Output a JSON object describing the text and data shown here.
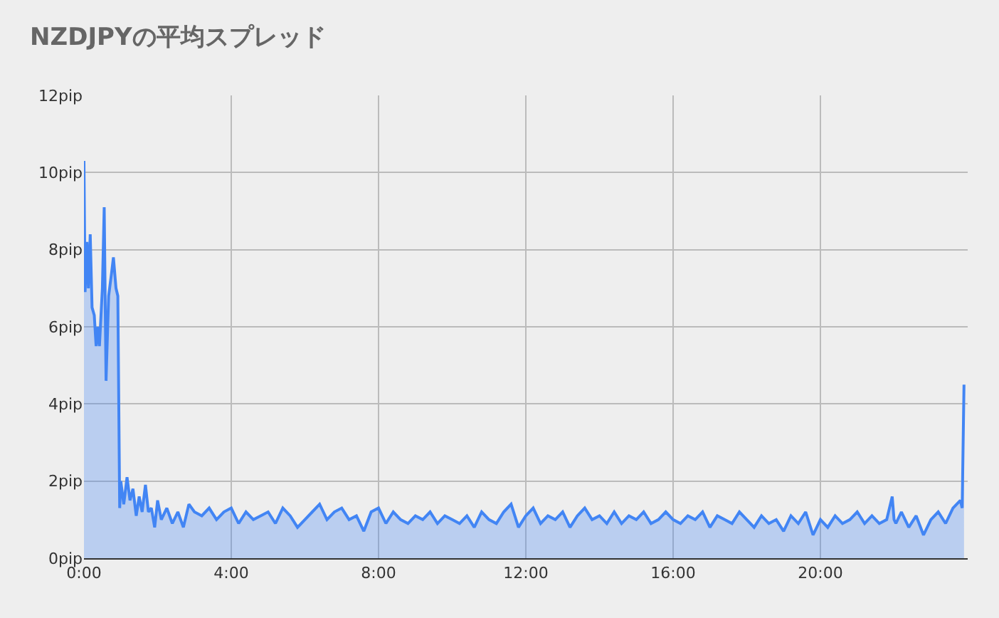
{
  "chart_data": {
    "type": "area",
    "title": "NZDJPYの平均スプレッド",
    "color": "#4285f4",
    "x": [
      0,
      0.03,
      0.08,
      0.12,
      0.17,
      0.22,
      0.28,
      0.33,
      0.38,
      0.42,
      0.5,
      0.55,
      0.6,
      0.67,
      0.75,
      0.8,
      0.87,
      0.92,
      0.97,
      1.0,
      1.08,
      1.17,
      1.25,
      1.33,
      1.42,
      1.5,
      1.58,
      1.67,
      1.75,
      1.83,
      1.92,
      2.0,
      2.1,
      2.25,
      2.4,
      2.55,
      2.7,
      2.85,
      3.0,
      3.2,
      3.4,
      3.6,
      3.8,
      4.0,
      4.2,
      4.4,
      4.6,
      4.8,
      5.0,
      5.2,
      5.4,
      5.6,
      5.8,
      6.0,
      6.2,
      6.4,
      6.6,
      6.8,
      7.0,
      7.2,
      7.4,
      7.6,
      7.8,
      8.0,
      8.2,
      8.4,
      8.6,
      8.8,
      9.0,
      9.2,
      9.4,
      9.6,
      9.8,
      10.0,
      10.2,
      10.4,
      10.6,
      10.8,
      11.0,
      11.2,
      11.4,
      11.6,
      11.8,
      12.0,
      12.2,
      12.4,
      12.6,
      12.8,
      13.0,
      13.2,
      13.4,
      13.6,
      13.8,
      14.0,
      14.2,
      14.4,
      14.6,
      14.8,
      15.0,
      15.2,
      15.4,
      15.6,
      15.8,
      16.0,
      16.2,
      16.4,
      16.6,
      16.8,
      17.0,
      17.2,
      17.4,
      17.6,
      17.8,
      18.0,
      18.2,
      18.4,
      18.6,
      18.8,
      19.0,
      19.2,
      19.4,
      19.6,
      19.8,
      20.0,
      20.2,
      20.4,
      20.6,
      20.8,
      21.0,
      21.2,
      21.4,
      21.6,
      21.8,
      21.95,
      22.0,
      22.05,
      22.2,
      22.4,
      22.6,
      22.8,
      23.0,
      23.2,
      23.4,
      23.6,
      23.8,
      23.85,
      23.9
    ],
    "values": [
      10.3,
      6.9,
      8.2,
      7.0,
      8.4,
      6.5,
      6.3,
      5.5,
      6.0,
      5.5,
      7.0,
      9.1,
      4.6,
      6.8,
      7.4,
      7.8,
      7.0,
      6.8,
      1.3,
      2.0,
      1.4,
      2.1,
      1.5,
      1.8,
      1.1,
      1.6,
      1.2,
      1.9,
      1.2,
      1.3,
      0.8,
      1.5,
      1.0,
      1.3,
      0.9,
      1.2,
      0.8,
      1.4,
      1.2,
      1.1,
      1.3,
      1.0,
      1.2,
      1.3,
      0.9,
      1.2,
      1.0,
      1.1,
      1.2,
      0.9,
      1.3,
      1.1,
      0.8,
      1.0,
      1.2,
      1.4,
      1.0,
      1.2,
      1.3,
      1.0,
      1.1,
      0.7,
      1.2,
      1.3,
      0.9,
      1.2,
      1.0,
      0.9,
      1.1,
      1.0,
      1.2,
      0.9,
      1.1,
      1.0,
      0.9,
      1.1,
      0.8,
      1.2,
      1.0,
      0.9,
      1.2,
      1.4,
      0.8,
      1.1,
      1.3,
      0.9,
      1.1,
      1.0,
      1.2,
      0.8,
      1.1,
      1.3,
      1.0,
      1.1,
      0.9,
      1.2,
      0.9,
      1.1,
      1.0,
      1.2,
      0.9,
      1.0,
      1.2,
      1.0,
      0.9,
      1.1,
      1.0,
      1.2,
      0.8,
      1.1,
      1.0,
      0.9,
      1.2,
      1.0,
      0.8,
      1.1,
      0.9,
      1.0,
      0.7,
      1.1,
      0.9,
      1.2,
      0.6,
      1.0,
      0.8,
      1.1,
      0.9,
      1.0,
      1.2,
      0.9,
      1.1,
      0.9,
      1.0,
      1.6,
      1.0,
      0.9,
      1.2,
      0.8,
      1.1,
      0.6,
      1.0,
      1.2,
      0.9,
      1.3,
      1.5,
      1.3,
      4.5
    ],
    "xlim": [
      0,
      24
    ],
    "xticks": [
      {
        "value": 0,
        "label": "0:00"
      },
      {
        "value": 4,
        "label": "4:00"
      },
      {
        "value": 8,
        "label": "8:00"
      },
      {
        "value": 12,
        "label": "12:00"
      },
      {
        "value": 16,
        "label": "16:00"
      },
      {
        "value": 20,
        "label": "20:00"
      }
    ],
    "ylim": [
      0,
      12
    ],
    "yticks": [
      {
        "value": 0,
        "label": "0pip"
      },
      {
        "value": 2,
        "label": "2pip"
      },
      {
        "value": 4,
        "label": "4pip"
      },
      {
        "value": 6,
        "label": "6pip"
      },
      {
        "value": 8,
        "label": "8pip"
      },
      {
        "value": 10,
        "label": "10pip"
      },
      {
        "value": 12,
        "label": "12pip"
      }
    ],
    "grid": true,
    "legend": false
  }
}
